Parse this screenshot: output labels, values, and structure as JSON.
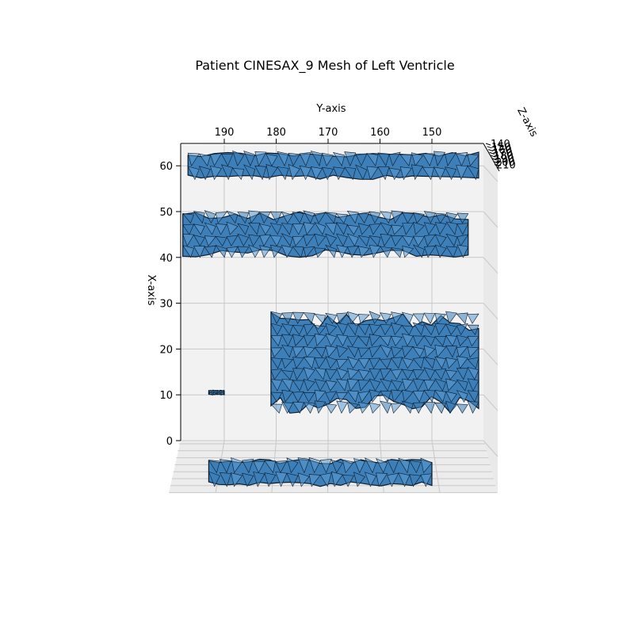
{
  "colors": {
    "mesh_face": "#3d7fb8",
    "mesh_face_light": "#5a9ad0",
    "mesh_edge": "#0d1b2a",
    "pane": "#f2f2f2",
    "grid": "#c8c8c8",
    "axis": "#000000"
  },
  "chart_data": {
    "type": "surface-mesh-3d",
    "title": "Patient CINESAX_9 Mesh of Left Ventricle",
    "xlabel": "X-axis",
    "ylabel": "Y-axis",
    "zlabel": "Z-axis",
    "x_ticks": [
      0,
      10,
      20,
      30,
      40,
      50,
      60
    ],
    "y_ticks": [
      190,
      180,
      170,
      160,
      150
    ],
    "z_ticks": [
      140,
      150,
      160,
      170,
      180,
      190,
      200,
      210
    ],
    "x_tick_labels": [
      "0",
      "10",
      "20",
      "30",
      "40",
      "50",
      "60"
    ],
    "y_tick_labels": [
      "190",
      "180",
      "170",
      "160",
      "150"
    ],
    "z_tick_labels": [
      "140",
      "150",
      "160",
      "170",
      "180",
      "190",
      "200",
      "210"
    ],
    "xlim": [
      0,
      63
    ],
    "ylim": [
      198,
      140
    ],
    "zlim": [
      140,
      210
    ],
    "grid": true,
    "mesh_regions": [
      {
        "name": "top-slab",
        "x_range": [
          57,
          63
        ],
        "y_range": [
          141,
          197
        ]
      },
      {
        "name": "upper-slab",
        "x_range": [
          40,
          50
        ],
        "y_range": [
          143,
          198
        ]
      },
      {
        "name": "main-chamber",
        "x_range": [
          6,
          28
        ],
        "y_range": [
          141,
          181
        ]
      },
      {
        "name": "small-fragment",
        "x_range": [
          10,
          11
        ],
        "y_range": [
          190,
          193
        ]
      },
      {
        "name": "bottom-fragments",
        "x_range": [
          -10,
          -4
        ],
        "y_range": [
          150,
          193
        ]
      }
    ]
  }
}
